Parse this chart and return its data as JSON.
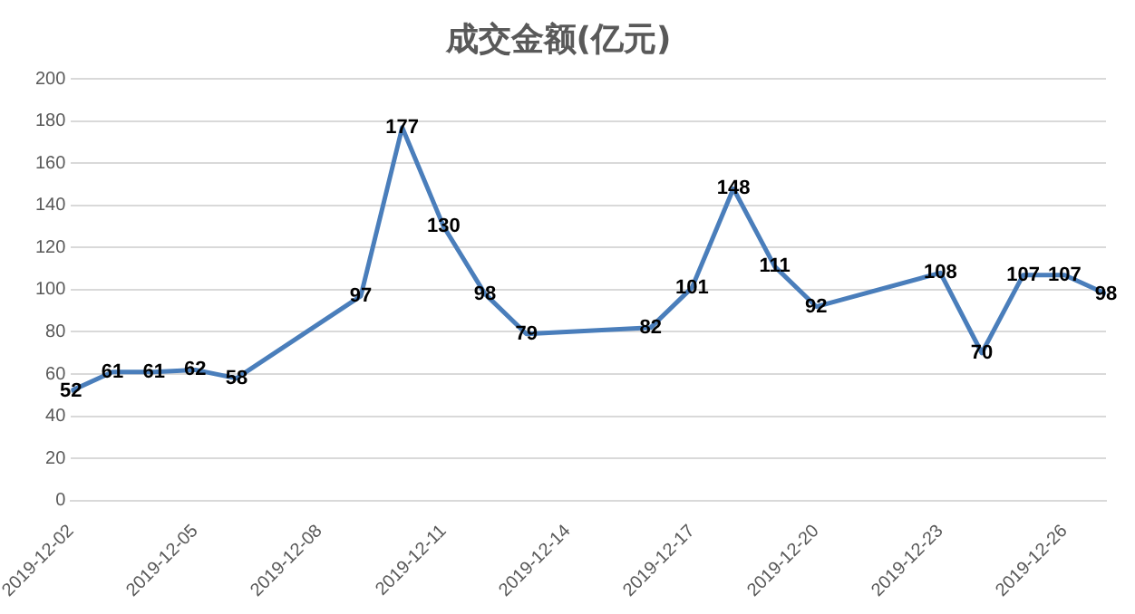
{
  "chart_data": {
    "type": "line",
    "title": "成交金额(亿元)",
    "x": [
      "2019-12-02",
      "2019-12-03",
      "2019-12-04",
      "2019-12-05",
      "2019-12-06",
      "2019-12-09",
      "2019-12-10",
      "2019-12-11",
      "2019-12-12",
      "2019-12-13",
      "2019-12-16",
      "2019-12-17",
      "2019-12-18",
      "2019-12-19",
      "2019-12-20",
      "2019-12-23",
      "2019-12-24",
      "2019-12-25",
      "2019-12-26",
      "2019-12-27"
    ],
    "series": [
      {
        "color": "#4a7ebb",
        "values": [
          52,
          61,
          61,
          62,
          58,
          97,
          177,
          130,
          98,
          79,
          82,
          101,
          148,
          111,
          92,
          108,
          70,
          107,
          107,
          98
        ]
      }
    ],
    "xlim": [
      "2019-12-02",
      "2019-12-27"
    ],
    "xticks": [
      "2019-12-02",
      "2019-12-05",
      "2019-12-08",
      "2019-12-11",
      "2019-12-14",
      "2019-12-17",
      "2019-12-20",
      "2019-12-23",
      "2019-12-26"
    ],
    "ylim": [
      0,
      200
    ],
    "yticks": [
      0,
      20,
      40,
      60,
      80,
      100,
      120,
      140,
      160,
      180,
      200
    ],
    "grid": "y",
    "legend": false,
    "marker": "none",
    "line_style": "solid",
    "data_labels": true
  }
}
